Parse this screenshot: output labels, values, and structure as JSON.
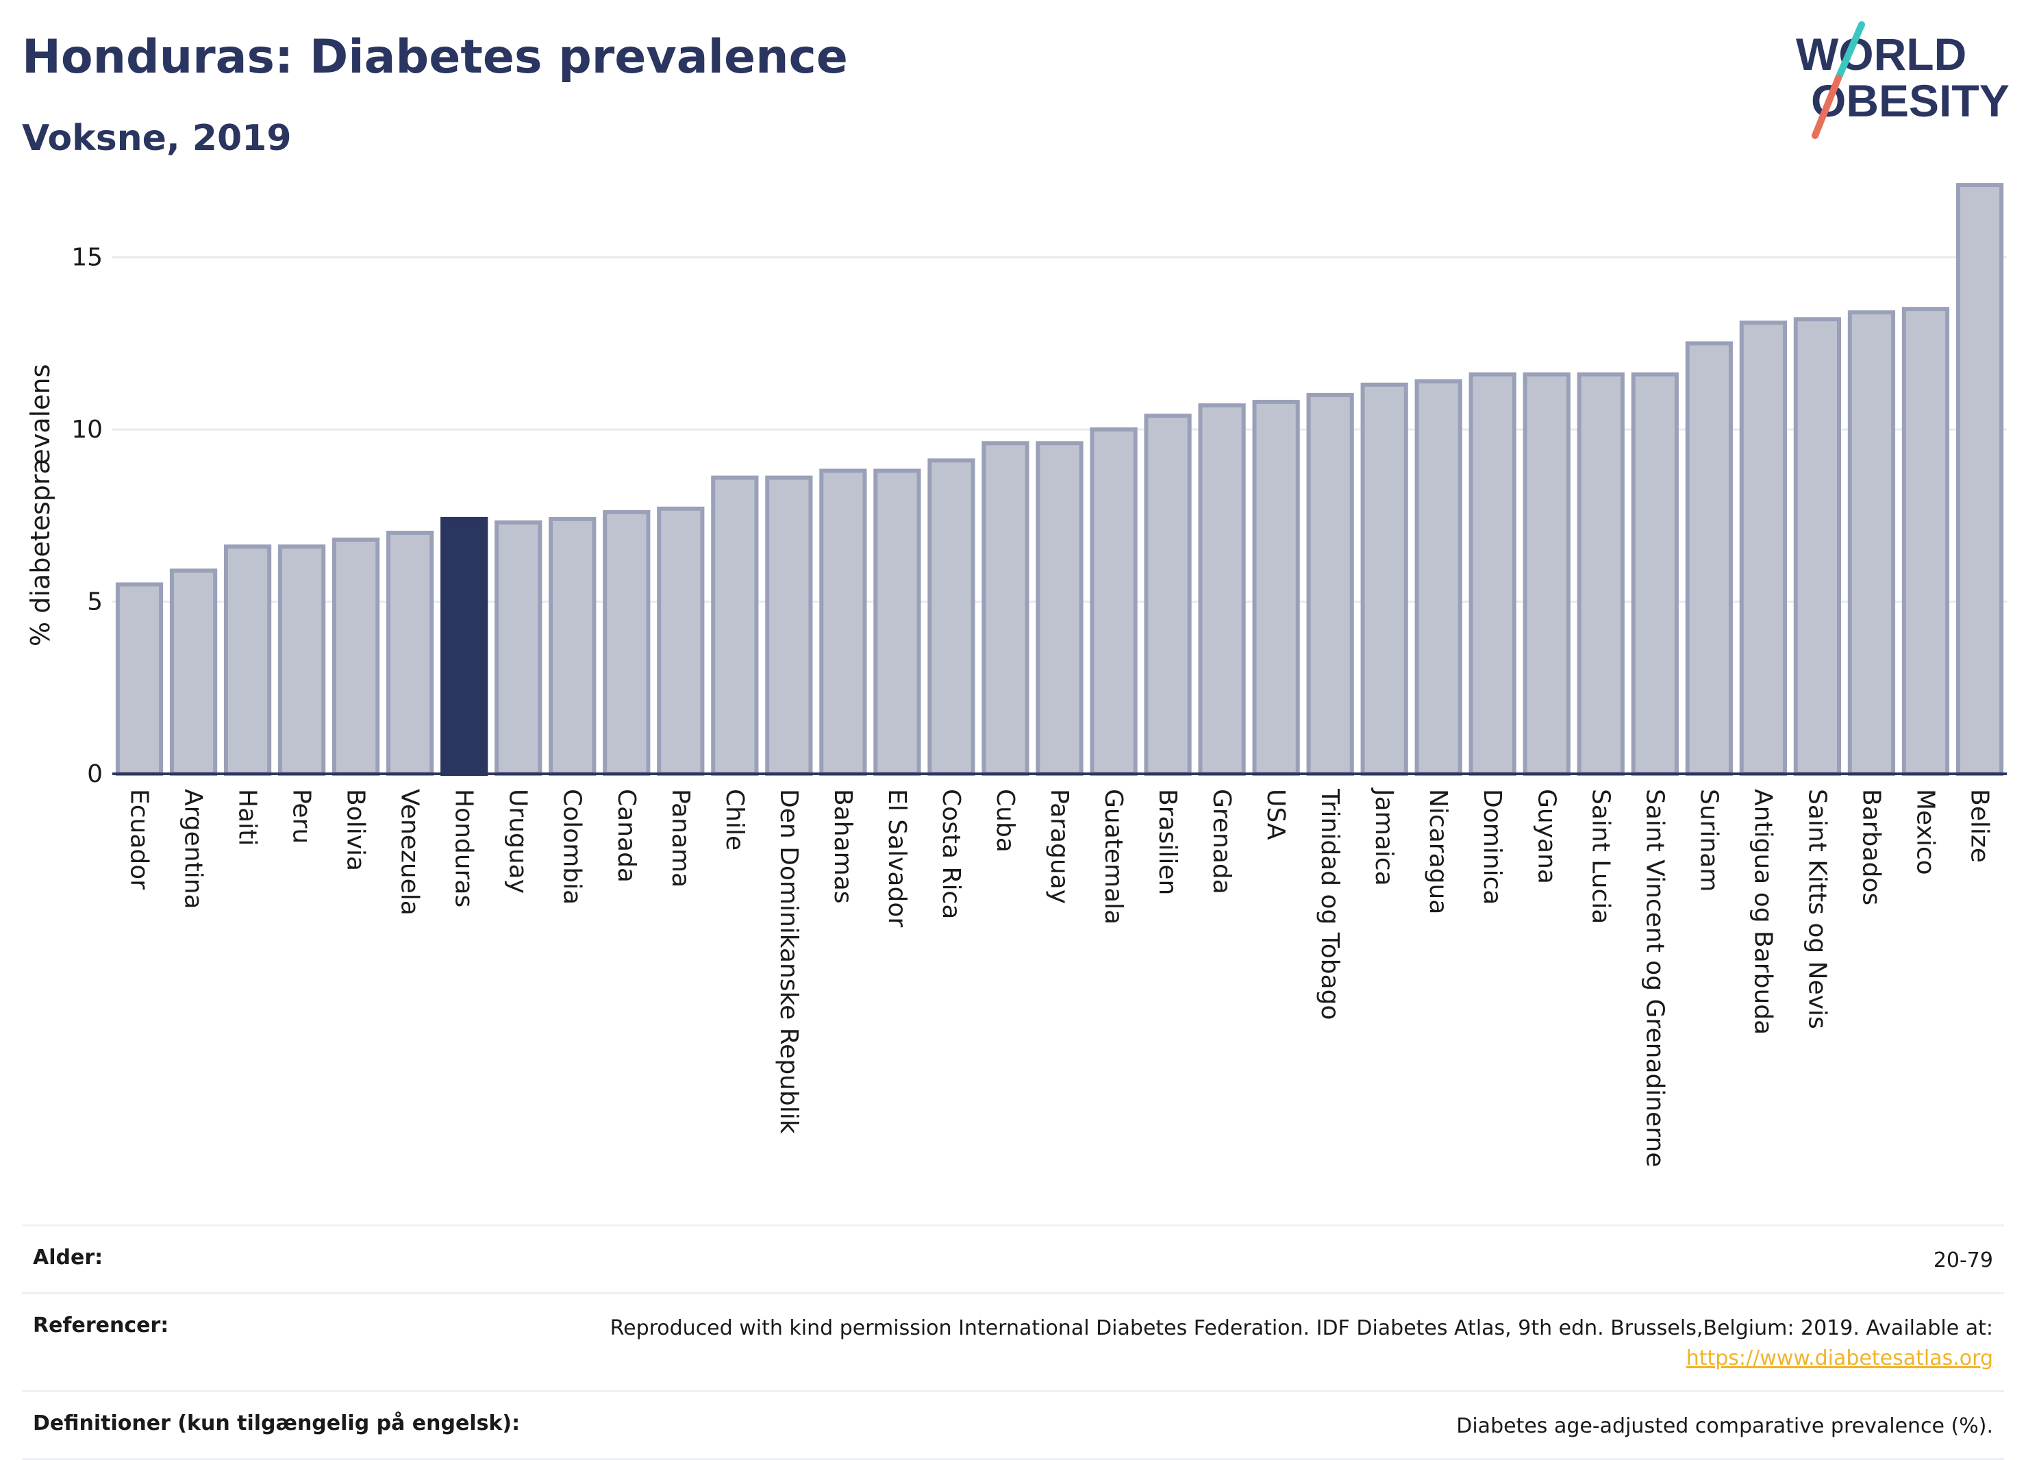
{
  "header": {
    "title": "Honduras: Diabetes prevalence",
    "subtitle": "Voksne, 2019"
  },
  "logo": {
    "line1": "WORLD",
    "line2": "OBESITY",
    "icon": "slash-mark-icon",
    "colors": {
      "text": "#2a3560",
      "slash_top": "#3cc6c0",
      "slash_bottom": "#e8705a"
    }
  },
  "chart_data": {
    "type": "bar",
    "title": "",
    "xlabel": "",
    "ylabel": "% diabetesprævalens",
    "ylim": [
      0,
      17.5
    ],
    "yticks": [
      0,
      5,
      10,
      15
    ],
    "grid": true,
    "highlight": "Honduras",
    "colors": {
      "bar": "#bfc3d0",
      "bar_edge": "#9aa0b8",
      "highlight": "#2a3560"
    },
    "categories": [
      "Ecuador",
      "Argentina",
      "Haiti",
      "Peru",
      "Bolivia",
      "Venezuela",
      "Honduras",
      "Uruguay",
      "Colombia",
      "Canada",
      "Panama",
      "Chile",
      "Den Dominikanske Republik",
      "Bahamas",
      "El Salvador",
      "Costa Rica",
      "Cuba",
      "Paraguay",
      "Guatemala",
      "Brasilien",
      "Grenada",
      "USA",
      "Trinidad og Tobago",
      "Jamaica",
      "Nicaragua",
      "Dominica",
      "Guyana",
      "Saint Lucia",
      "Saint Vincent og Grenadinerne",
      "Surinam",
      "Antigua og Barbuda",
      "Saint Kitts og Nevis",
      "Barbados",
      "Mexico",
      "Belize"
    ],
    "values": [
      5.5,
      5.9,
      6.6,
      6.6,
      6.8,
      7.0,
      7.4,
      7.3,
      7.4,
      7.6,
      7.7,
      8.6,
      8.6,
      8.8,
      8.8,
      9.1,
      9.6,
      9.6,
      10.0,
      10.4,
      10.7,
      10.8,
      11.0,
      11.3,
      11.4,
      11.6,
      11.6,
      11.6,
      11.6,
      12.5,
      13.1,
      13.2,
      13.4,
      13.5,
      17.1
    ]
  },
  "footer": {
    "rows": [
      {
        "label": "Alder:",
        "value": "20-79"
      },
      {
        "label": "Referencer:",
        "value": "Reproduced with kind permission International Diabetes Federation. IDF Diabetes Atlas, 9th edn. Brussels,Belgium: 2019. Available at:",
        "link": "https://www.diabetesatlas.org"
      },
      {
        "label": "Definitioner (kun tilgængelig på engelsk):",
        "value": "Diabetes age-adjusted comparative prevalence (%)."
      }
    ]
  }
}
